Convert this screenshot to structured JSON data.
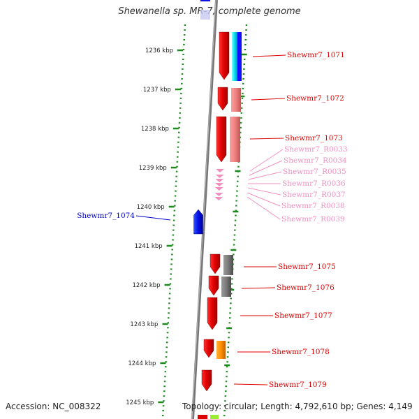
{
  "title": "Shewanella sp. MR-7, complete genome",
  "footer": {
    "accession": "Accession: NC_008322",
    "topology": "Topology: circular; Length: 4,792,610 bp; Genes: 4,149"
  },
  "axis_ticks": [
    {
      "kbp": 1236,
      "label": "1236 kbp"
    },
    {
      "kbp": 1237,
      "label": "1237 kbp"
    },
    {
      "kbp": 1238,
      "label": "1238 kbp"
    },
    {
      "kbp": 1239,
      "label": "1239 kbp"
    },
    {
      "kbp": 1240,
      "label": "1240 kbp"
    },
    {
      "kbp": 1241,
      "label": "1241 kbp"
    },
    {
      "kbp": 1242,
      "label": "1242 kbp"
    },
    {
      "kbp": 1243,
      "label": "1243 kbp"
    },
    {
      "kbp": 1244,
      "label": "1244 kbp"
    },
    {
      "kbp": 1245,
      "label": "1245 kbp"
    }
  ],
  "genes": [
    {
      "label": "Shewmr7_1071",
      "color": "#dd0000"
    },
    {
      "label": "Shewmr7_1072",
      "color": "#dd0000"
    },
    {
      "label": "Shewmr7_1073",
      "color": "#dd0000"
    },
    {
      "label": "Shewmr7_R0033",
      "color": "#f090c0"
    },
    {
      "label": "Shewmr7_R0034",
      "color": "#f090c0"
    },
    {
      "label": "Shewmr7_R0035",
      "color": "#f090c0"
    },
    {
      "label": "Shewmr7_R0036",
      "color": "#f090c0"
    },
    {
      "label": "Shewmr7_R0037",
      "color": "#f090c0"
    },
    {
      "label": "Shewmr7_R0038",
      "color": "#f090c0"
    },
    {
      "label": "Shewmr7_R0039",
      "color": "#f090c0"
    },
    {
      "label": "Shewmr7_1074",
      "color": "#0000cc"
    },
    {
      "label": "Shewmr7_1075",
      "color": "#dd0000"
    },
    {
      "label": "Shewmr7_1076",
      "color": "#dd0000"
    },
    {
      "label": "Shewmr7_1077",
      "color": "#dd0000"
    },
    {
      "label": "Shewmr7_1078",
      "color": "#dd0000"
    },
    {
      "label": "Shewmr7_1079",
      "color": "#dd0000"
    }
  ]
}
